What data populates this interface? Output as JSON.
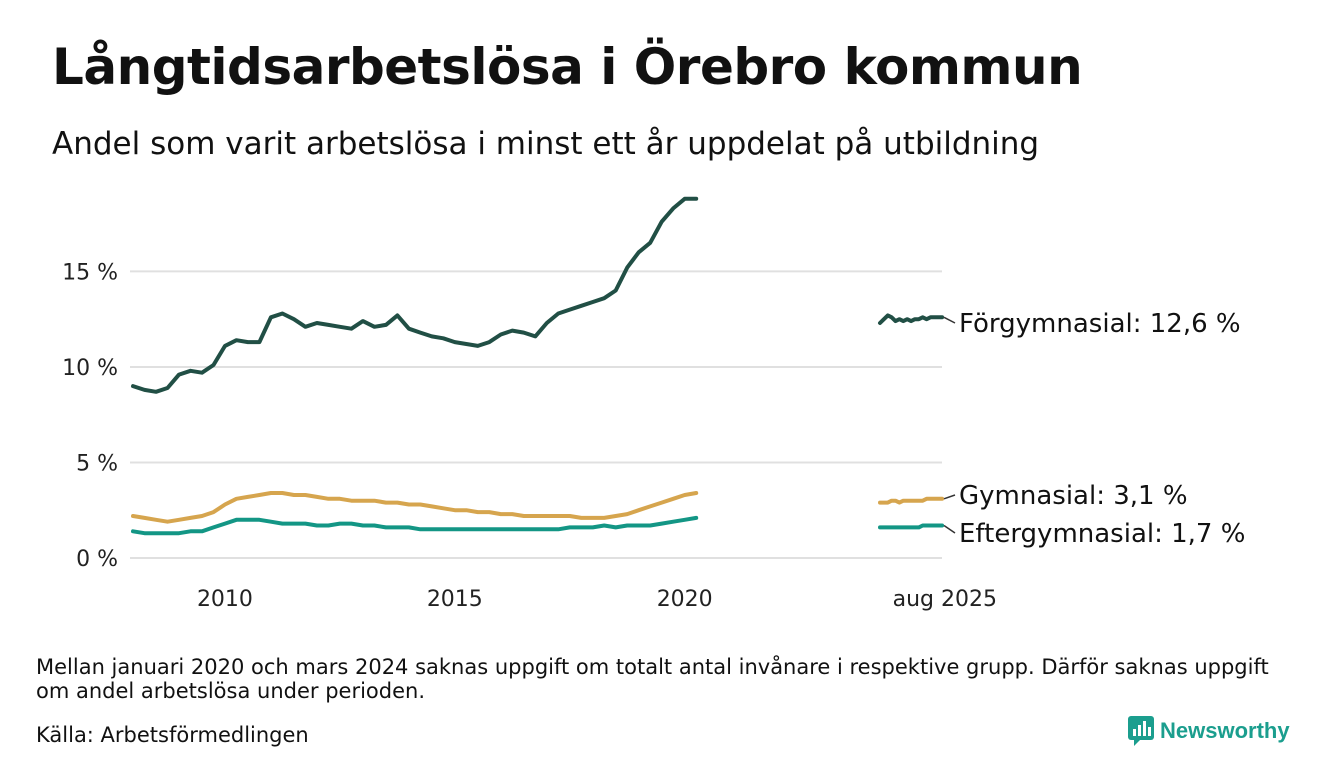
{
  "title": "Långtidsarbetslösa i Örebro kommun",
  "subtitle": "Andel som varit arbetslösa i minst ett år uppdelat på utbildning",
  "note": "Mellan januari 2020 och mars 2024 saknas uppgift om totalt antal invånare i respektive grupp. Därför saknas uppgift om andel arbetslösa under perioden.",
  "source": "Källa: Arbetsförmedlingen",
  "brand": {
    "name": "Newsworthy",
    "icon": "newsworthy-chart-icon",
    "color": "#1b9e8e"
  },
  "chart_data": {
    "type": "line",
    "title": "",
    "xlabel": "",
    "ylabel": "",
    "ylim": [
      0,
      19
    ],
    "y_ticks": [
      0,
      5,
      10,
      15
    ],
    "y_tick_labels": [
      "0 %",
      "5 %",
      "10 %",
      "15 %"
    ],
    "x_ticks": [
      {
        "label": "2010",
        "segment": 0,
        "x": 2010
      },
      {
        "label": "2015",
        "segment": 0,
        "x": 2015
      },
      {
        "label": "2020",
        "segment": 0,
        "x": 2020
      },
      {
        "label": "aug 2025",
        "segment": 1,
        "x": 2025.58
      }
    ],
    "grid": true,
    "segments": [
      {
        "x_range": [
          2008.0,
          2020.92
        ]
      },
      {
        "x_range": [
          2024.25,
          2025.58
        ]
      }
    ],
    "series": [
      {
        "name": "Förgymnasial",
        "end_label": "Förgymnasial: 12,6 %",
        "color": "#214f45",
        "segments": [
          {
            "x_start": 2008.0,
            "x_step": 0.25,
            "values": [
              9.0,
              8.8,
              8.7,
              8.9,
              9.6,
              9.8,
              9.7,
              10.1,
              11.1,
              11.4,
              11.3,
              11.3,
              12.6,
              12.8,
              12.5,
              12.1,
              12.3,
              12.2,
              12.1,
              12.0,
              12.4,
              12.1,
              12.2,
              12.7,
              12.0,
              11.8,
              11.6,
              11.5,
              11.3,
              11.2,
              11.1,
              11.3,
              11.7,
              11.9,
              11.8,
              11.6,
              12.3,
              12.8,
              13.0,
              13.2,
              13.4,
              13.6,
              14.0,
              15.2,
              16.0,
              16.5,
              17.6,
              18.3,
              18.8,
              18.8
            ]
          },
          {
            "x_start": 2024.25,
            "x_step": 0.0833,
            "values": [
              12.3,
              12.5,
              12.7,
              12.6,
              12.4,
              12.5,
              12.4,
              12.5,
              12.4,
              12.5,
              12.5,
              12.6,
              12.5,
              12.6,
              12.6,
              12.6,
              12.6
            ]
          }
        ]
      },
      {
        "name": "Gymnasial",
        "end_label": "Gymnasial:  3,1 %",
        "color": "#d6a54e",
        "segments": [
          {
            "x_start": 2008.0,
            "x_step": 0.25,
            "values": [
              2.2,
              2.1,
              2.0,
              1.9,
              2.0,
              2.1,
              2.2,
              2.4,
              2.8,
              3.1,
              3.2,
              3.3,
              3.4,
              3.4,
              3.3,
              3.3,
              3.2,
              3.1,
              3.1,
              3.0,
              3.0,
              3.0,
              2.9,
              2.9,
              2.8,
              2.8,
              2.7,
              2.6,
              2.5,
              2.5,
              2.4,
              2.4,
              2.3,
              2.3,
              2.2,
              2.2,
              2.2,
              2.2,
              2.2,
              2.1,
              2.1,
              2.1,
              2.2,
              2.3,
              2.5,
              2.7,
              2.9,
              3.1,
              3.3,
              3.4
            ]
          },
          {
            "x_start": 2024.25,
            "x_step": 0.0833,
            "values": [
              2.9,
              2.9,
              2.9,
              3.0,
              3.0,
              2.9,
              3.0,
              3.0,
              3.0,
              3.0,
              3.0,
              3.0,
              3.1,
              3.1,
              3.1,
              3.1,
              3.1
            ]
          }
        ]
      },
      {
        "name": "Eftergymnasial",
        "end_label": "Eftergymnasial:  1,7 %",
        "color": "#139685",
        "segments": [
          {
            "x_start": 2008.0,
            "x_step": 0.25,
            "values": [
              1.4,
              1.3,
              1.3,
              1.3,
              1.3,
              1.4,
              1.4,
              1.6,
              1.8,
              2.0,
              2.0,
              2.0,
              1.9,
              1.8,
              1.8,
              1.8,
              1.7,
              1.7,
              1.8,
              1.8,
              1.7,
              1.7,
              1.6,
              1.6,
              1.6,
              1.5,
              1.5,
              1.5,
              1.5,
              1.5,
              1.5,
              1.5,
              1.5,
              1.5,
              1.5,
              1.5,
              1.5,
              1.5,
              1.6,
              1.6,
              1.6,
              1.7,
              1.6,
              1.7,
              1.7,
              1.7,
              1.8,
              1.9,
              2.0,
              2.1
            ]
          },
          {
            "x_start": 2024.25,
            "x_step": 0.0833,
            "values": [
              1.6,
              1.6,
              1.6,
              1.6,
              1.6,
              1.6,
              1.6,
              1.6,
              1.6,
              1.6,
              1.6,
              1.7,
              1.7,
              1.7,
              1.7,
              1.7,
              1.7
            ]
          }
        ]
      }
    ]
  }
}
